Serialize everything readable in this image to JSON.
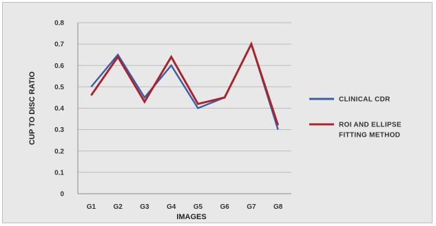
{
  "chart_data": {
    "type": "line",
    "categories": [
      "G1",
      "G2",
      "G3",
      "G4",
      "G5",
      "G6",
      "G7",
      "G8"
    ],
    "series": [
      {
        "name": "CLINICAL CDR",
        "values": [
          0.5,
          0.65,
          0.45,
          0.6,
          0.4,
          0.45,
          0.7,
          0.3
        ],
        "color": "#3a5fa8"
      },
      {
        "name": "ROI AND ELLIPSE FITTING METHOD",
        "name_lines": [
          "ROI AND ELLIPSE",
          "FITTING METHOD"
        ],
        "values": [
          0.46,
          0.64,
          0.43,
          0.64,
          0.42,
          0.45,
          0.7,
          0.32
        ],
        "color": "#a8252c"
      }
    ],
    "xlabel": "IMAGES",
    "ylabel": "CUP TO DISC RATIO",
    "ylim": [
      0,
      0.8
    ],
    "yticks": [
      "0",
      "0.1",
      "0.2",
      "0.3",
      "0.4",
      "0.5",
      "0.6",
      "0.7",
      "0.8"
    ],
    "grid": true,
    "legend": "right"
  }
}
